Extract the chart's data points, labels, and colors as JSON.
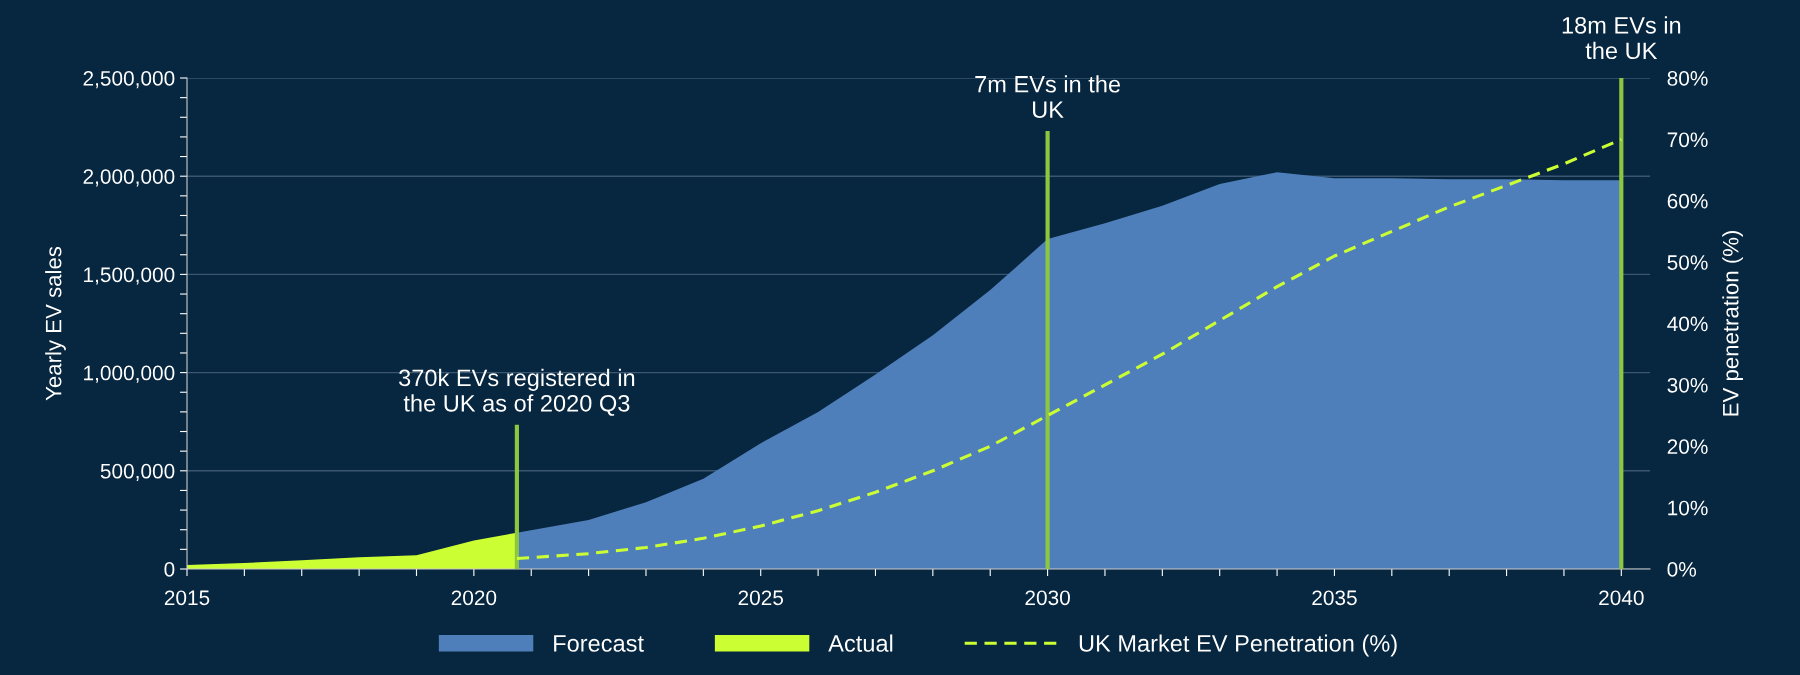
{
  "chart_data": {
    "type": "area",
    "xlabel": null,
    "ylabel": "Yearly EV sales",
    "y2label": "EV penetration (%)",
    "series": [
      {
        "name": "Forecast",
        "color": "#4f7fba",
        "x": [
          2020.75,
          2022,
          2023,
          2024,
          2025,
          2026,
          2027,
          2028,
          2029,
          2030,
          2031,
          2032,
          2033,
          2034,
          2035,
          2036,
          2037,
          2038,
          2039,
          2040
        ],
        "values": [
          185000,
          250000,
          340000,
          460000,
          640000,
          800000,
          990000,
          1190000,
          1420000,
          1680000,
          1760000,
          1850000,
          1960000,
          2020000,
          1990000,
          1990000,
          1985000,
          1985000,
          1980000,
          1980000
        ]
      },
      {
        "name": "Actual",
        "color": "#ccff33",
        "x": [
          2015,
          2016,
          2017,
          2018,
          2019,
          2020,
          2020.75
        ],
        "values": [
          20000,
          30000,
          45000,
          60000,
          70000,
          145000,
          185000
        ]
      },
      {
        "name": "UK Market EV Penetration (%)",
        "type": "line",
        "axis": "y2",
        "color": "#ccff33",
        "line_style": "dashed",
        "x": [
          2020.75,
          2022,
          2023,
          2024,
          2025,
          2026,
          2027,
          2028,
          2029,
          2030,
          2031,
          2032,
          2033,
          2034,
          2035,
          2036,
          2037,
          2038,
          2039,
          2040
        ],
        "values": [
          1.7,
          2.5,
          3.5,
          5,
          7,
          9.5,
          12.5,
          16,
          20,
          25,
          30,
          35,
          40.5,
          46,
          51,
          55,
          59,
          62.5,
          66,
          70
        ]
      }
    ],
    "ref_lines": [
      {
        "axis": "x",
        "value": 2020.75,
        "label": "370k EVs registered in\nthe UK as of 2020 Q3",
        "color": "#8dc63f"
      },
      {
        "axis": "x",
        "value": 2030,
        "label": "7m EVs in the\nUK",
        "color": "#8dc63f"
      },
      {
        "axis": "x",
        "value": 2040,
        "label": "18m EVs in\nthe UK",
        "color": "#8dc63f"
      }
    ],
    "xlim": [
      2015,
      2040.5
    ],
    "xticks": [
      2015,
      {
        "value": 2016,
        "label": null
      },
      {
        "value": 2017,
        "label": null
      },
      {
        "value": 2018,
        "label": null
      },
      {
        "value": 2019,
        "label": null
      },
      2020,
      {
        "value": 2021,
        "label": null
      },
      {
        "value": 2022,
        "label": null
      },
      {
        "value": 2023,
        "label": null
      },
      {
        "value": 2024,
        "label": null
      },
      2025,
      {
        "value": 2026,
        "label": null
      },
      {
        "value": 2027,
        "label": null
      },
      {
        "value": 2028,
        "label": null
      },
      {
        "value": 2029,
        "label": null
      },
      2030,
      {
        "value": 2031,
        "label": null
      },
      {
        "value": 2032,
        "label": null
      },
      {
        "value": 2033,
        "label": null
      },
      {
        "value": 2034,
        "label": null
      },
      2035,
      {
        "value": 2036,
        "label": null
      },
      {
        "value": 2037,
        "label": null
      },
      {
        "value": 2038,
        "label": null
      },
      {
        "value": 2039,
        "label": null
      },
      2040
    ],
    "ylim": [
      0,
      2500000
    ],
    "yticks": [
      {
        "value": 0,
        "label": "0"
      },
      {
        "value": 100000,
        "label": null
      },
      {
        "value": 200000,
        "label": null
      },
      {
        "value": 300000,
        "label": null
      },
      {
        "value": 400000,
        "label": null
      },
      {
        "value": 500000,
        "label": "500,000"
      },
      {
        "value": 600000,
        "label": null
      },
      {
        "value": 700000,
        "label": null
      },
      {
        "value": 800000,
        "label": null
      },
      {
        "value": 900000,
        "label": null
      },
      {
        "value": 1000000,
        "label": "1,000,000"
      },
      {
        "value": 1100000,
        "label": null
      },
      {
        "value": 1200000,
        "label": null
      },
      {
        "value": 1300000,
        "label": null
      },
      {
        "value": 1400000,
        "label": null
      },
      {
        "value": 1500000,
        "label": "1,500,000"
      },
      {
        "value": 1600000,
        "label": null
      },
      {
        "value": 1700000,
        "label": null
      },
      {
        "value": 1800000,
        "label": null
      },
      {
        "value": 1900000,
        "label": null
      },
      {
        "value": 2000000,
        "label": "2,000,000"
      },
      {
        "value": 2100000,
        "label": null
      },
      {
        "value": 2200000,
        "label": null
      },
      {
        "value": 2300000,
        "label": null
      },
      {
        "value": 2400000,
        "label": null
      },
      {
        "value": 2500000,
        "label": "2,500,000"
      }
    ],
    "y2lim": [
      0,
      80
    ],
    "y2ticks": [
      {
        "value": 0,
        "label": "0%"
      },
      {
        "value": 10,
        "label": "10%"
      },
      {
        "value": 20,
        "label": "20%"
      },
      {
        "value": 30,
        "label": "30%"
      },
      {
        "value": 40,
        "label": "40%"
      },
      {
        "value": 50,
        "label": "50%"
      },
      {
        "value": 60,
        "label": "60%"
      },
      {
        "value": 70,
        "label": "70%"
      },
      {
        "value": 80,
        "label": "80%"
      }
    ],
    "grid": "y",
    "legend": "bottom"
  }
}
